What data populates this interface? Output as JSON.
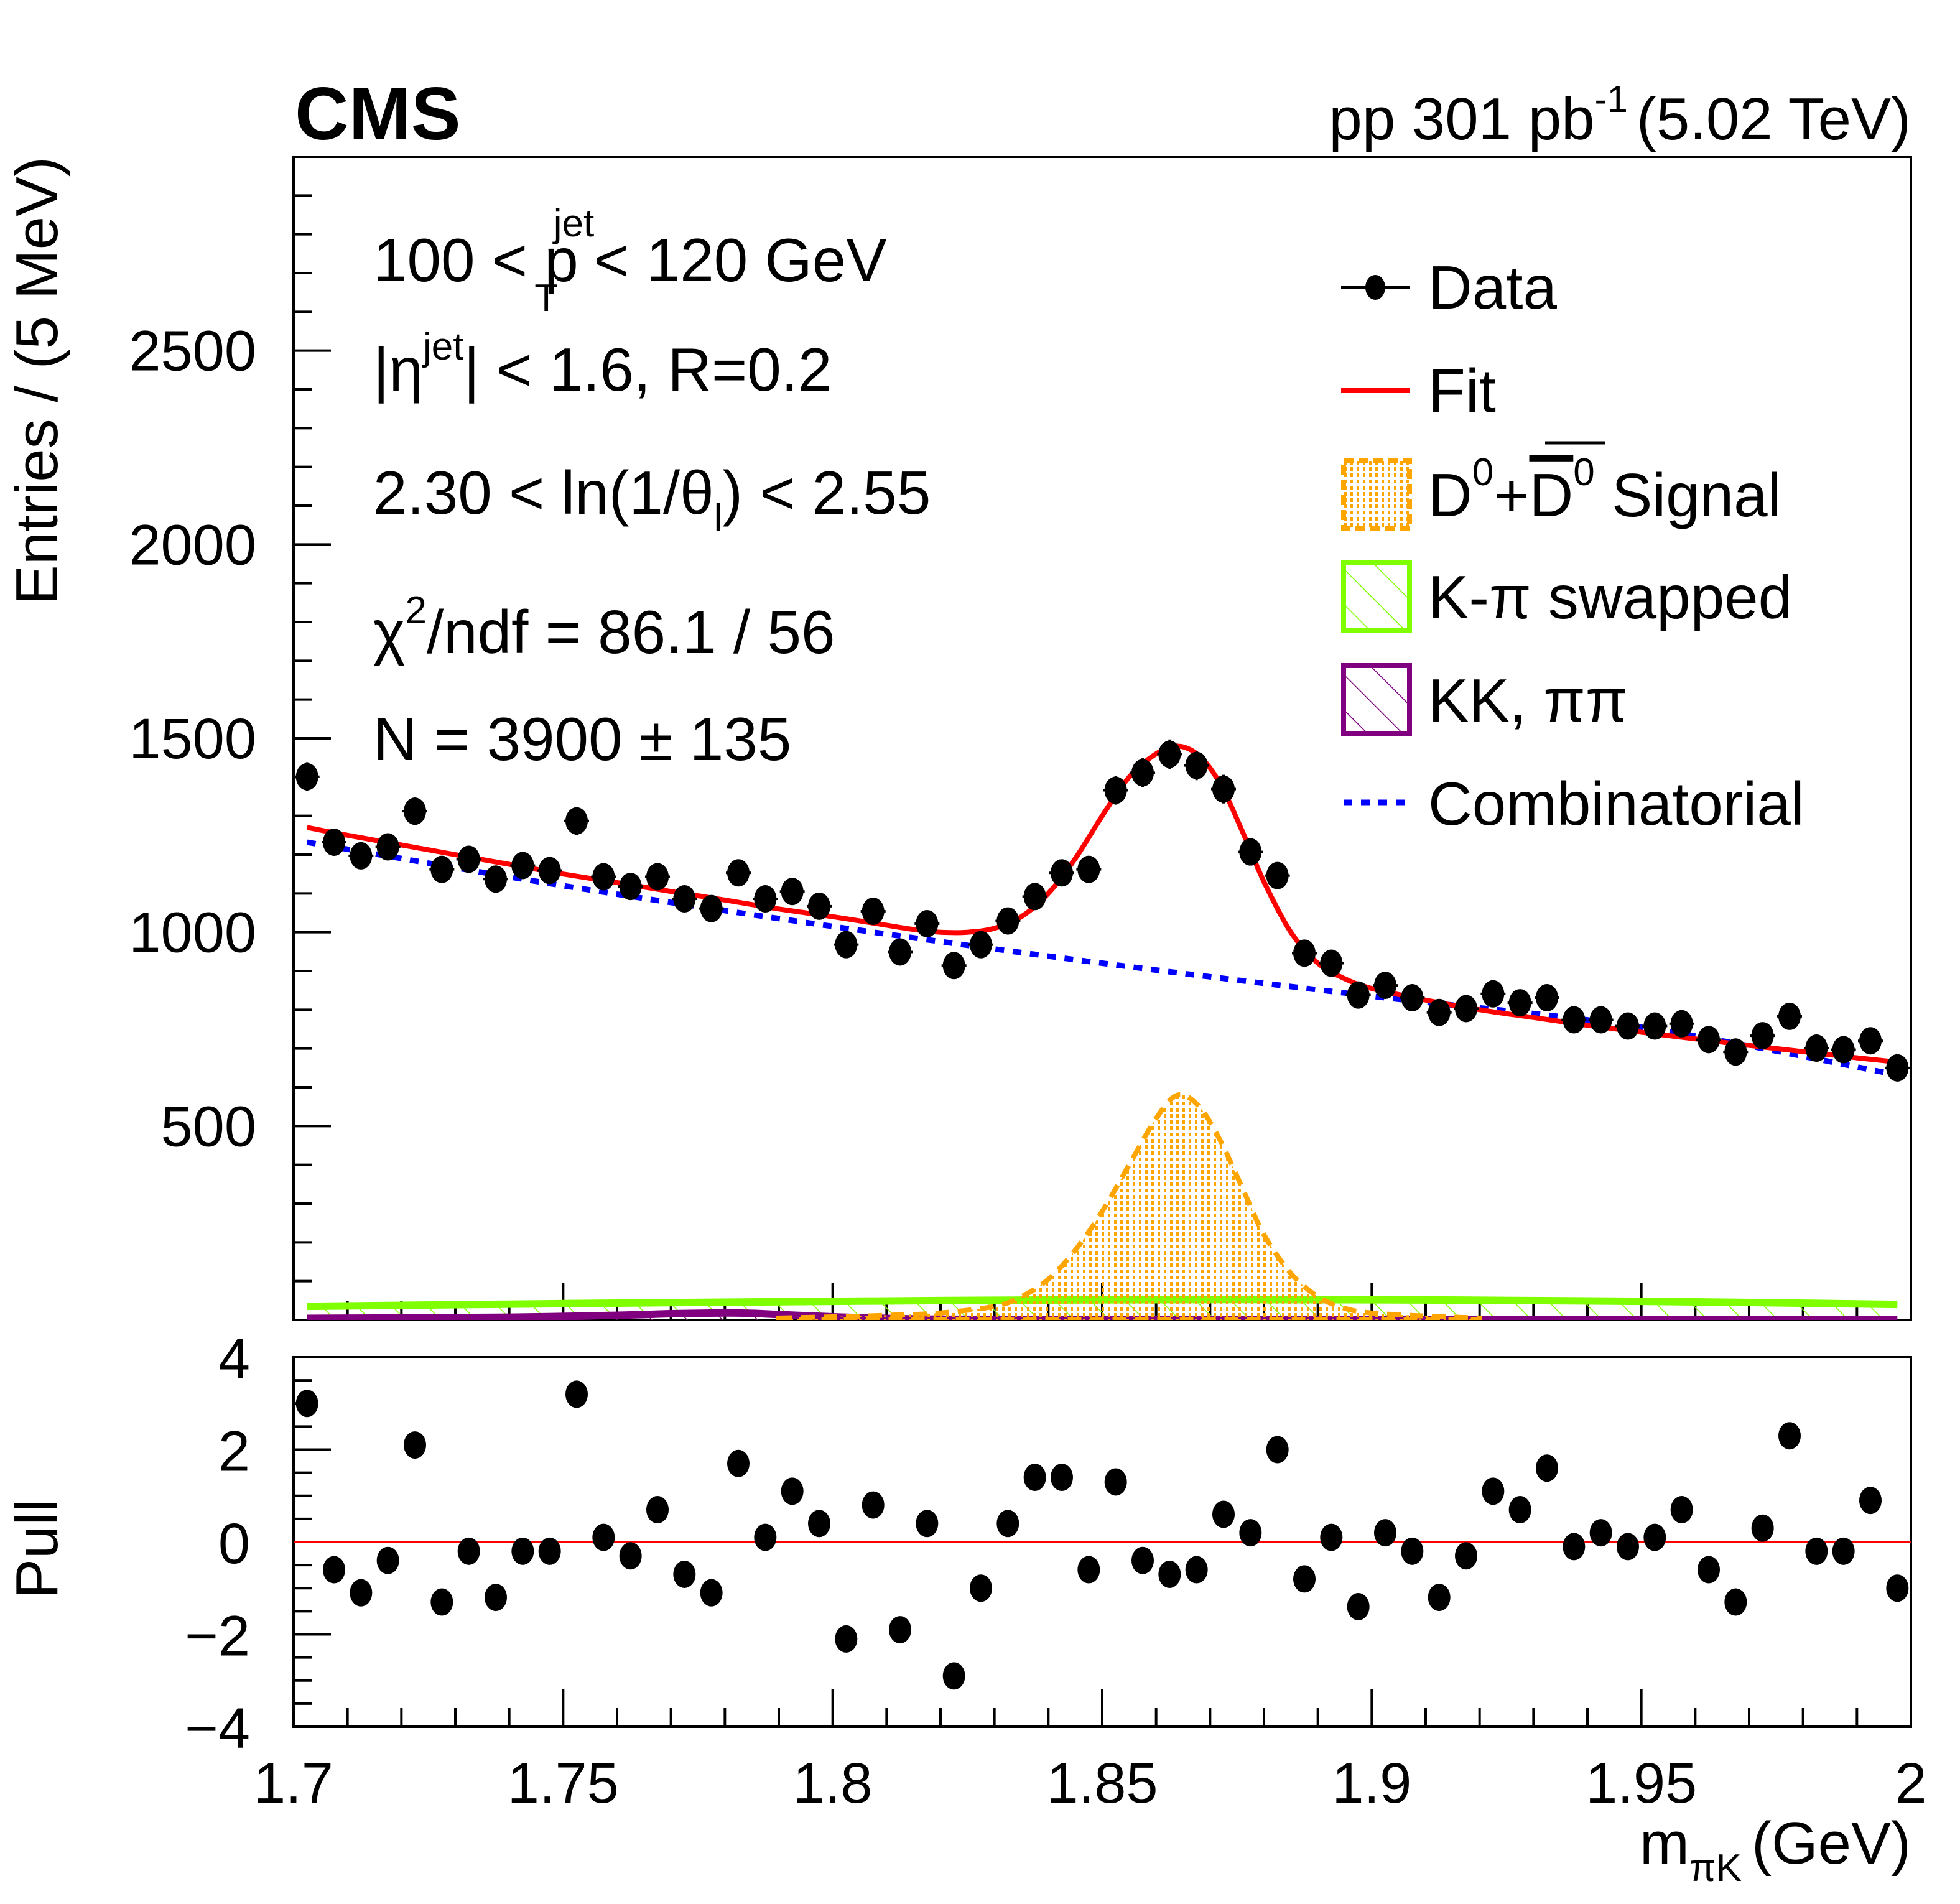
{
  "header": {
    "experiment": "CMS",
    "lumi_prefix": "pp 301 pb",
    "lumi_exponent": "-1",
    "energy": "(5.02 TeV)"
  },
  "annotations": {
    "pt_cut": {
      "left": "100 < p",
      "sup": "jet",
      "sub": "T",
      "right": " < 120 GeV"
    },
    "eta_cut": {
      "left": "|η",
      "sup": "jet",
      "right": "| < 1.6, R=0.2"
    },
    "theta_cut": {
      "left": "2.30 < ln(1/θ",
      "sub": "l",
      "right": ") <  2.55"
    },
    "chi2": {
      "left": "χ",
      "sup": "2",
      "right": "/ndf = 86.1 / 56"
    },
    "yield": "N = 3900 ± 135"
  },
  "legend": [
    {
      "key": "data",
      "label": "Data",
      "color": "#000000"
    },
    {
      "key": "fit",
      "label": "Fit",
      "color": "#ff0000"
    },
    {
      "key": "signal",
      "label_pre": "D",
      "sup1": "0",
      "plus": "+",
      "label_bar": "D",
      "sup2": "0",
      "label_post": " Signal",
      "color": "#ffa500"
    },
    {
      "key": "swapped",
      "label": "K-π swapped",
      "color": "#7fff00"
    },
    {
      "key": "kkpipi",
      "label": "KK, ππ",
      "color": "#800080"
    },
    {
      "key": "comb",
      "label": "Combinatorial",
      "color": "#0000ff"
    }
  ],
  "chart_data": [
    {
      "type": "scatter",
      "title": "Main panel: D0 invariant-mass fit",
      "xlabel": "m_πK (GeV)",
      "ylabel": "Entries / (5 MeV)",
      "xlim": [
        1.7,
        2.0
      ],
      "ylim": [
        0,
        3000
      ],
      "yticks": [
        500,
        1000,
        1500,
        2000,
        2500
      ],
      "xticks": [
        1.7,
        1.75,
        1.8,
        1.85,
        1.9,
        1.95,
        2.0
      ],
      "xtick_labels": [
        "1.7",
        "1.75",
        "1.8",
        "1.85",
        "1.9",
        "1.95",
        "2"
      ],
      "ytick_labels": [
        "500",
        "1000",
        "1500",
        "2000",
        "2500"
      ],
      "legend_position": "top-right",
      "grid": false,
      "series": [
        {
          "name": "Data",
          "x": [
            1.7025,
            1.7075,
            1.7125,
            1.7175,
            1.7225,
            1.7275,
            1.7325,
            1.7375,
            1.7425,
            1.7475,
            1.7525,
            1.7575,
            1.7625,
            1.7675,
            1.7725,
            1.7775,
            1.7825,
            1.7875,
            1.7925,
            1.7975,
            1.8025,
            1.8075,
            1.8125,
            1.8175,
            1.8225,
            1.8275,
            1.8325,
            1.8375,
            1.8425,
            1.8475,
            1.8525,
            1.8575,
            1.8625,
            1.8675,
            1.8725,
            1.8775,
            1.8825,
            1.8875,
            1.8925,
            1.8975,
            1.9025,
            1.9075,
            1.9125,
            1.9175,
            1.9225,
            1.9275,
            1.9325,
            1.9375,
            1.9425,
            1.9475,
            1.9525,
            1.9575,
            1.9625,
            1.9675,
            1.9725,
            1.9775,
            1.9825,
            1.9875,
            1.9925,
            1.9975
          ],
          "y": [
            1401,
            1232,
            1197,
            1220,
            1312,
            1162,
            1188,
            1137,
            1172,
            1159,
            1287,
            1143,
            1118,
            1143,
            1086,
            1061,
            1153,
            1086,
            1105,
            1067,
            968,
            1054,
            949,
            1022,
            914,
            968,
            1029,
            1092,
            1153,
            1162,
            1366,
            1411,
            1459,
            1430,
            1369,
            1207,
            1146,
            946,
            920,
            838,
            863,
            831,
            793,
            803,
            841,
            818,
            831,
            774,
            774,
            758,
            758,
            764,
            723,
            691,
            733,
            783,
            701,
            697,
            720,
            650
          ]
        },
        {
          "name": "Fit",
          "x": [
            1.7025,
            1.71,
            1.72,
            1.73,
            1.74,
            1.75,
            1.76,
            1.77,
            1.78,
            1.79,
            1.8,
            1.81,
            1.815,
            1.82,
            1.825,
            1.83,
            1.835,
            1.84,
            1.845,
            1.85,
            1.855,
            1.86,
            1.864,
            1.868,
            1.872,
            1.876,
            1.88,
            1.885,
            1.89,
            1.895,
            1.9,
            1.91,
            1.92,
            1.93,
            1.94,
            1.95,
            1.96,
            1.97,
            1.98,
            1.99,
            1.9975
          ],
          "y": [
            1270,
            1250,
            1225,
            1200,
            1175,
            1150,
            1128,
            1105,
            1083,
            1060,
            1040,
            1018,
            1007,
            1000,
            1000,
            1010,
            1040,
            1100,
            1190,
            1300,
            1400,
            1460,
            1480,
            1455,
            1380,
            1260,
            1130,
            1000,
            920,
            880,
            855,
            825,
            800,
            780,
            760,
            742,
            725,
            708,
            692,
            676,
            665
          ]
        },
        {
          "name": "D0+D0bar Signal",
          "x": [
            1.79,
            1.8,
            1.81,
            1.82,
            1.83,
            1.835,
            1.84,
            1.845,
            1.85,
            1.855,
            1.86,
            1.864,
            1.868,
            1.872,
            1.876,
            1.88,
            1.885,
            1.89,
            1.895,
            1.9,
            1.91,
            1.92
          ],
          "y": [
            5,
            8,
            12,
            18,
            35,
            60,
            105,
            180,
            280,
            400,
            520,
            580,
            550,
            460,
            340,
            220,
            120,
            60,
            30,
            18,
            10,
            5
          ]
        },
        {
          "name": "K-pi swapped",
          "x": [
            1.7025,
            1.75,
            1.8,
            1.85,
            1.9,
            1.95,
            1.9975
          ],
          "y": [
            35,
            42,
            48,
            52,
            52,
            48,
            40
          ]
        },
        {
          "name": "KK, pipi",
          "x": [
            1.7025,
            1.74,
            1.76,
            1.77,
            1.78,
            1.785,
            1.79,
            1.8,
            1.81,
            1.82,
            1.85,
            1.9,
            1.95,
            1.9975
          ],
          "y": [
            4,
            7,
            12,
            16,
            18,
            17,
            14,
            8,
            4,
            2,
            1,
            1,
            1,
            1
          ]
        },
        {
          "name": "Combinatorial",
          "x": [
            1.7025,
            1.75,
            1.8,
            1.85,
            1.9,
            1.95,
            1.9975
          ],
          "y": [
            1232,
            1120,
            1015,
            920,
            835,
            755,
            632
          ]
        }
      ]
    },
    {
      "type": "scatter",
      "title": "Pull panel",
      "xlabel": "m_πK (GeV)",
      "ylabel": "Pull",
      "xlim": [
        1.7,
        2.0
      ],
      "ylim": [
        -4,
        4
      ],
      "yticks": [
        -4,
        -2,
        0,
        2,
        4
      ],
      "ytick_labels": [
        "−4",
        "−2",
        "0",
        "2",
        "4"
      ],
      "reference_line": 0,
      "series": [
        {
          "name": "Pull",
          "x": [
            1.7025,
            1.7075,
            1.7125,
            1.7175,
            1.7225,
            1.7275,
            1.7325,
            1.7375,
            1.7425,
            1.7475,
            1.7525,
            1.7575,
            1.7625,
            1.7675,
            1.7725,
            1.7775,
            1.7825,
            1.7875,
            1.7925,
            1.7975,
            1.8025,
            1.8075,
            1.8125,
            1.8175,
            1.8225,
            1.8275,
            1.8325,
            1.8375,
            1.8425,
            1.8475,
            1.8525,
            1.8575,
            1.8625,
            1.8675,
            1.8725,
            1.8775,
            1.8825,
            1.8875,
            1.8925,
            1.8975,
            1.9025,
            1.9075,
            1.9125,
            1.9175,
            1.9225,
            1.9275,
            1.9325,
            1.9375,
            1.9425,
            1.9475,
            1.9525,
            1.9575,
            1.9625,
            1.9675,
            1.9725,
            1.9775,
            1.9825,
            1.9875,
            1.9925,
            1.9975
          ],
          "y": [
            3.0,
            -0.6,
            -1.1,
            -0.4,
            2.1,
            -1.3,
            -0.2,
            -1.2,
            -0.2,
            -0.2,
            3.2,
            0.1,
            -0.3,
            0.7,
            -0.7,
            -1.1,
            1.7,
            0.1,
            1.1,
            0.4,
            -2.1,
            0.8,
            -1.9,
            0.4,
            -2.9,
            -1.0,
            0.4,
            1.4,
            1.4,
            -0.6,
            1.3,
            -0.4,
            -0.7,
            -0.6,
            0.6,
            0.2,
            2.0,
            -0.8,
            0.1,
            -1.4,
            0.2,
            -0.2,
            -1.2,
            -0.3,
            1.1,
            0.7,
            1.6,
            -0.1,
            0.2,
            -0.1,
            0.1,
            0.7,
            -0.6,
            -1.3,
            0.3,
            2.3,
            -0.2,
            -0.2,
            0.9,
            -1.0
          ]
        }
      ]
    }
  ]
}
